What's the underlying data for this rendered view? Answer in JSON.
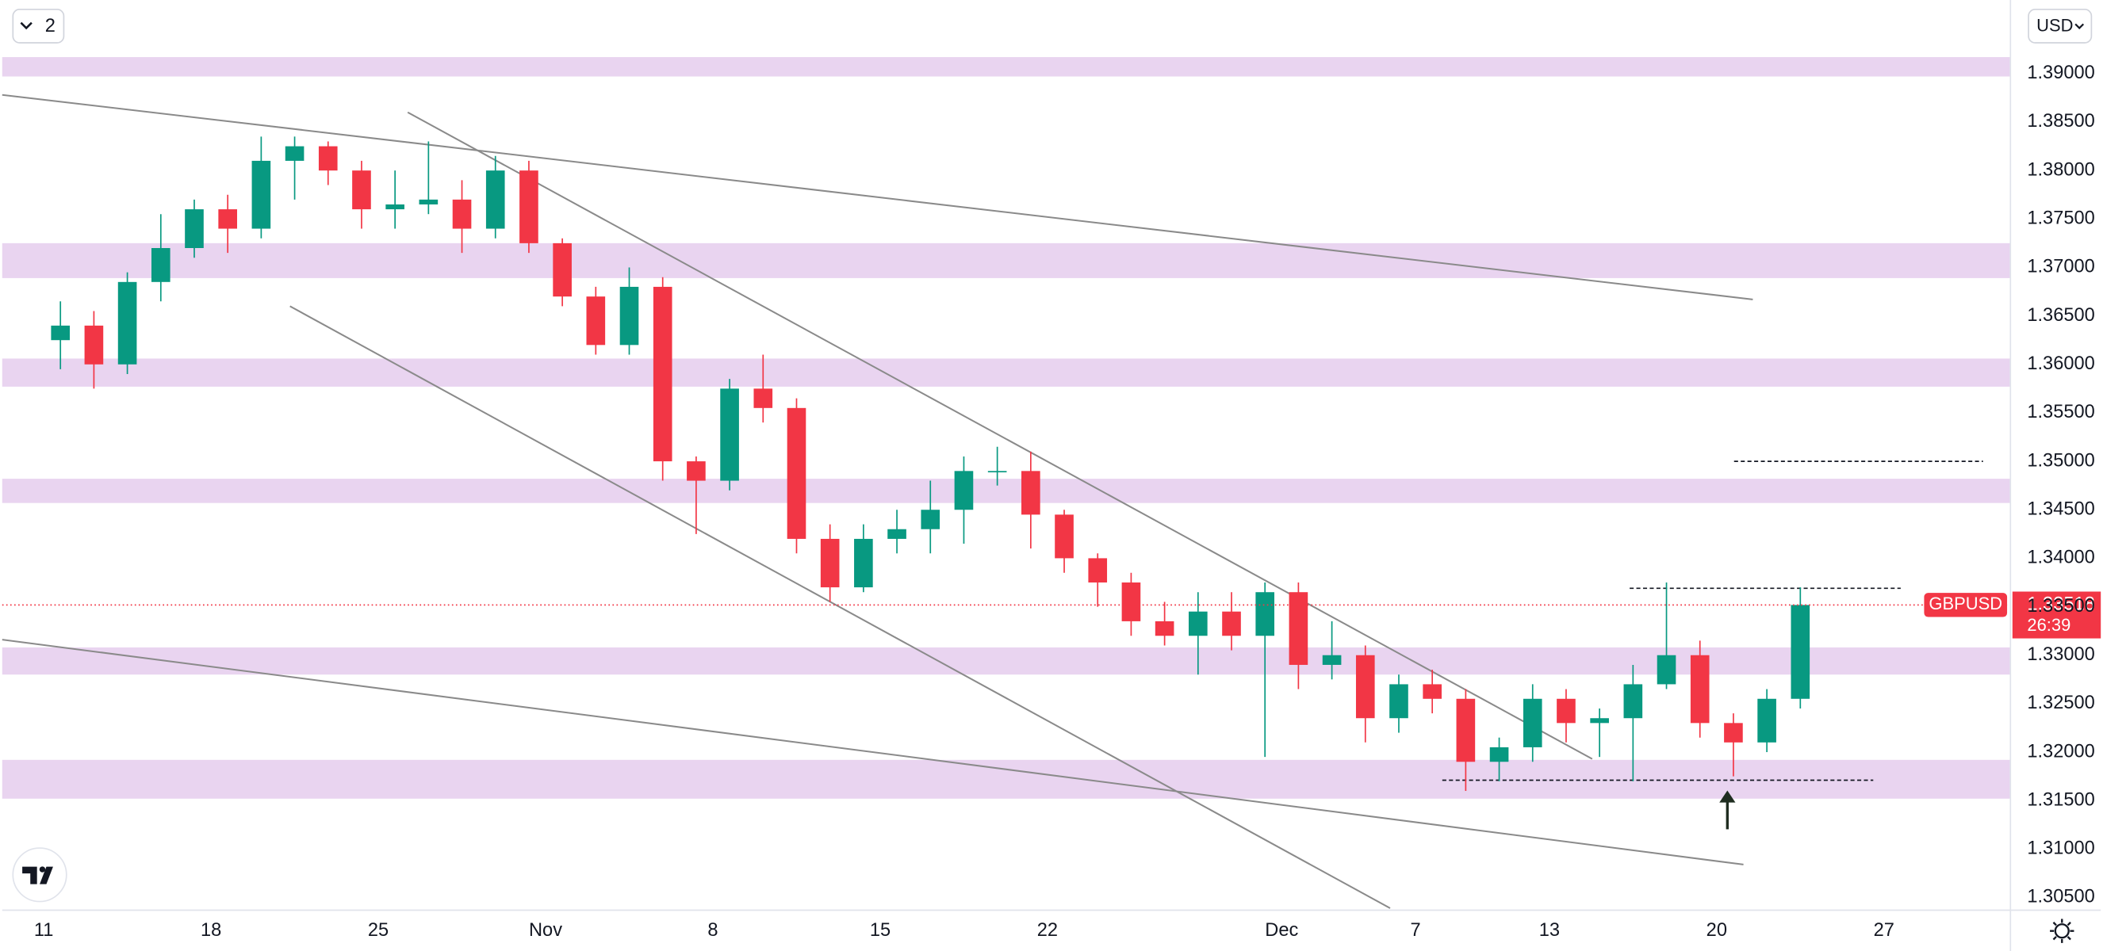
{
  "chart_data": {
    "type": "candlestick",
    "symbol": "GBPUSD",
    "currency": "USD",
    "toolbar_badge": "2",
    "last_price": 1.33518,
    "countdown": "26:39",
    "up_color": "#089981",
    "down_color": "#f23645",
    "zone_color": "#e4c9ec",
    "line_color": "#8a8a8a",
    "grid": true,
    "xlim": [
      -1.24,
      58.76
    ],
    "xticks": [
      {
        "value": 0,
        "label": "11"
      },
      {
        "value": 5,
        "label": "18"
      },
      {
        "value": 10,
        "label": "25"
      },
      {
        "value": 15,
        "label": "Nov"
      },
      {
        "value": 20,
        "label": "8"
      },
      {
        "value": 25,
        "label": "15"
      },
      {
        "value": 30,
        "label": "22"
      },
      {
        "value": 37,
        "label": "Dec"
      },
      {
        "value": 41,
        "label": "7"
      },
      {
        "value": 45,
        "label": "13"
      },
      {
        "value": 50,
        "label": "20"
      },
      {
        "value": 55,
        "label": "27"
      }
    ],
    "ylim": [
      1.30376,
      1.39759
    ],
    "yticks": [
      {
        "value": 1.305,
        "label": "1.30500"
      },
      {
        "value": 1.31,
        "label": "1.31000"
      },
      {
        "value": 1.315,
        "label": "1.31500"
      },
      {
        "value": 1.32,
        "label": "1.32000"
      },
      {
        "value": 1.325,
        "label": "1.32500"
      },
      {
        "value": 1.33,
        "label": "1.33000"
      },
      {
        "value": 1.335,
        "label": "1.33500"
      },
      {
        "value": 1.34,
        "label": "1.34000"
      },
      {
        "value": 1.345,
        "label": "1.34500"
      },
      {
        "value": 1.35,
        "label": "1.35000"
      },
      {
        "value": 1.355,
        "label": "1.35500"
      },
      {
        "value": 1.36,
        "label": "1.36000"
      },
      {
        "value": 1.365,
        "label": "1.36500"
      },
      {
        "value": 1.37,
        "label": "1.37000"
      },
      {
        "value": 1.375,
        "label": "1.37500"
      },
      {
        "value": 1.38,
        "label": "1.38000"
      },
      {
        "value": 1.385,
        "label": "1.38500"
      },
      {
        "value": 1.39,
        "label": "1.39000"
      }
    ],
    "open": [
      1.3625,
      1.364,
      1.36,
      1.3685,
      1.372,
      1.376,
      1.374,
      1.381,
      1.3825,
      1.38,
      1.376,
      1.3765,
      1.377,
      1.374,
      1.38,
      1.3725,
      1.367,
      1.362,
      1.368,
      1.35,
      1.348,
      1.3575,
      1.3555,
      1.342,
      1.337,
      1.342,
      1.343,
      1.345,
      1.349,
      1.349,
      1.3445,
      1.34,
      1.3375,
      1.3335,
      1.332,
      1.3345,
      1.332,
      1.3365,
      1.329,
      1.33,
      1.3235,
      1.327,
      1.3255,
      1.319,
      1.3205,
      1.3255,
      1.323,
      1.3235,
      1.327,
      1.33,
      1.323,
      1.321,
      1.3255
    ],
    "high": [
      1.3665,
      1.3655,
      1.3695,
      1.3755,
      1.377,
      1.3775,
      1.3835,
      1.3835,
      1.383,
      1.381,
      1.38,
      1.383,
      1.379,
      1.3815,
      1.381,
      1.373,
      1.368,
      1.37,
      1.369,
      1.3505,
      1.3585,
      1.361,
      1.3565,
      1.3435,
      1.3435,
      1.345,
      1.348,
      1.3505,
      1.3515,
      1.351,
      1.345,
      1.3405,
      1.3385,
      1.3355,
      1.3365,
      1.3365,
      1.3375,
      1.3375,
      1.3335,
      1.331,
      1.328,
      1.3285,
      1.3265,
      1.3215,
      1.327,
      1.3265,
      1.3245,
      1.329,
      1.3375,
      1.3315,
      1.324,
      1.3265,
      1.337
    ],
    "low": [
      1.3595,
      1.3575,
      1.359,
      1.3665,
      1.371,
      1.3715,
      1.373,
      1.377,
      1.3785,
      1.374,
      1.374,
      1.3755,
      1.3715,
      1.373,
      1.3715,
      1.366,
      1.361,
      1.361,
      1.348,
      1.3425,
      1.347,
      1.354,
      1.3405,
      1.3355,
      1.3365,
      1.3405,
      1.3405,
      1.3415,
      1.3475,
      1.341,
      1.3385,
      1.335,
      1.332,
      1.331,
      1.328,
      1.3305,
      1.3195,
      1.3265,
      1.3275,
      1.321,
      1.322,
      1.324,
      1.316,
      1.317,
      1.319,
      1.321,
      1.3195,
      1.317,
      1.3265,
      1.3215,
      1.3175,
      1.32,
      1.3245
    ],
    "close": [
      1.364,
      1.36,
      1.3685,
      1.372,
      1.376,
      1.374,
      1.381,
      1.3825,
      1.38,
      1.376,
      1.3765,
      1.377,
      1.374,
      1.38,
      1.3725,
      1.367,
      1.362,
      1.368,
      1.35,
      1.348,
      1.3575,
      1.3555,
      1.342,
      1.337,
      1.342,
      1.343,
      1.345,
      1.349,
      1.349,
      1.3445,
      1.34,
      1.3375,
      1.3335,
      1.332,
      1.3345,
      1.332,
      1.3365,
      1.329,
      1.33,
      1.3235,
      1.327,
      1.3255,
      1.319,
      1.3205,
      1.3255,
      1.323,
      1.3235,
      1.327,
      1.33,
      1.323,
      1.321,
      1.3255,
      1.33518
    ],
    "zones": [
      [
        1.3897,
        1.3917
      ],
      [
        1.3689,
        1.3725
      ],
      [
        1.3577,
        1.3606
      ],
      [
        1.3457,
        1.3482
      ],
      [
        1.328,
        1.3308
      ],
      [
        1.3152,
        1.3192
      ]
    ],
    "trendlines": [
      [
        -1.24,
        1.3878,
        51.08,
        1.3667
      ],
      [
        10.88,
        1.386,
        46.28,
        1.3193
      ],
      [
        7.36,
        1.366,
        40.24,
        1.3039
      ],
      [
        -1.24,
        1.3316,
        50.8,
        1.3084
      ]
    ],
    "dashed_levels": [
      [
        47.4,
        55.5,
        1.3369
      ],
      [
        50.52,
        57.96,
        1.35
      ],
      [
        41.8,
        54.68,
        1.3171
      ]
    ]
  }
}
